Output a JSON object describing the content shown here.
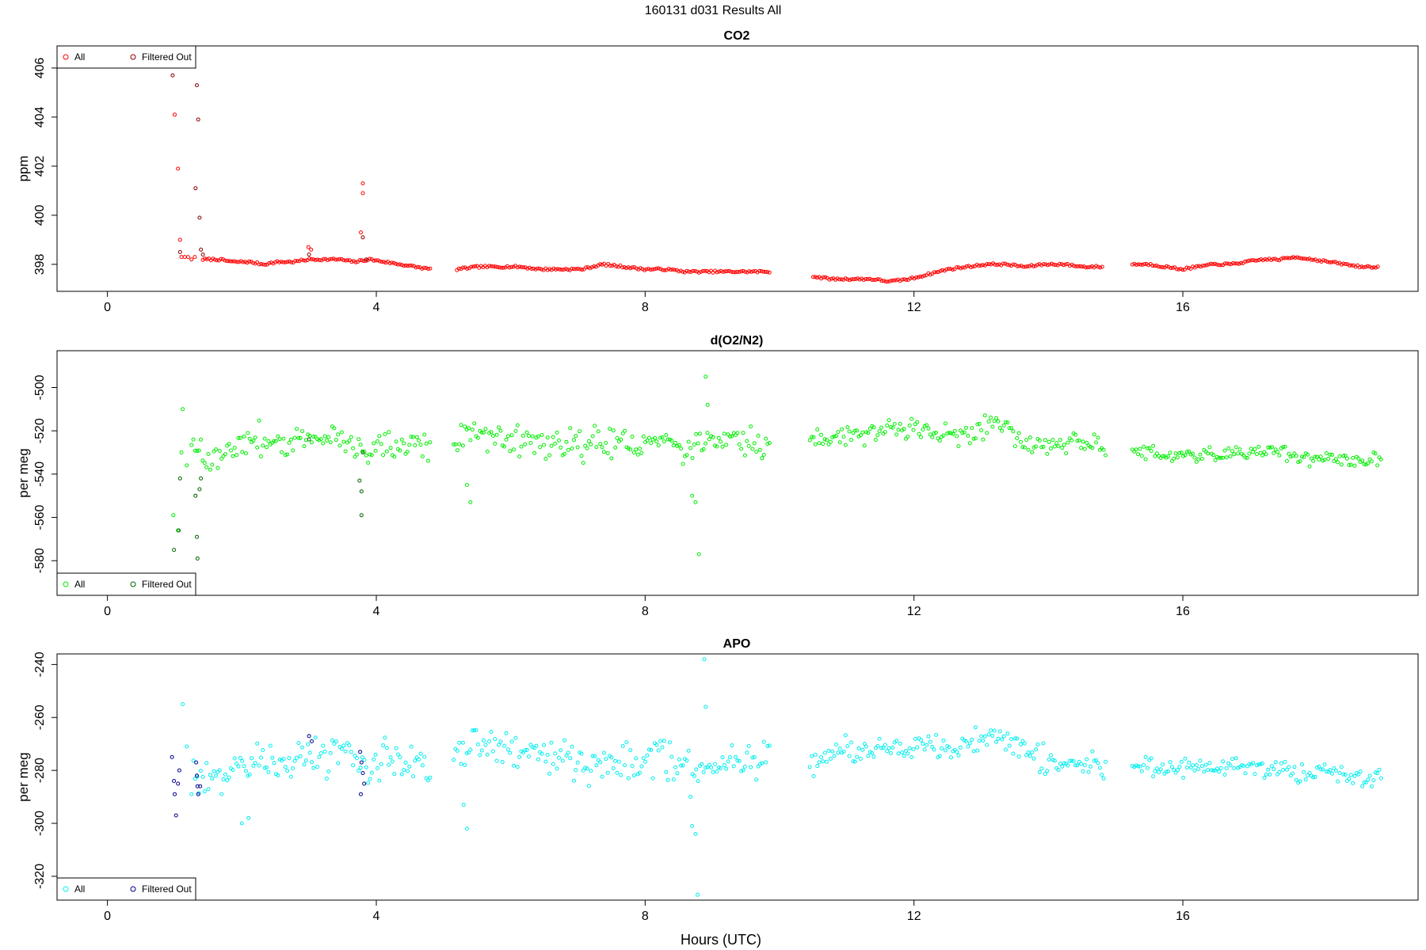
{
  "figure": {
    "title": "160131   d031   Results All",
    "xlabel": "Hours (UTC)",
    "xticks": [
      0,
      4,
      8,
      12,
      16
    ],
    "xlim": [
      -0.75,
      19.5
    ]
  },
  "chart_data": [
    {
      "type": "scatter",
      "title": "CO2",
      "ylabel": "ppm",
      "ylim": [
        396.9,
        406.9
      ],
      "yticks": [
        398,
        400,
        402,
        404,
        406
      ],
      "legend_position": "top-left",
      "series": [
        {
          "name": "All",
          "color": "#ff0000",
          "segments": [
            {
              "x_start": 1.42,
              "x_end": 4.8,
              "step": 0.03,
              "y": [
                398.2,
                398.2,
                398.1,
                398.1,
                398.0,
                398.1,
                398.1,
                398.2,
                398.2,
                398.2,
                398.1,
                398.2,
                398.1,
                398.0,
                397.9,
                397.8
              ]
            },
            {
              "x_start": 5.2,
              "x_end": 9.85,
              "step": 0.03,
              "y": [
                397.8,
                397.9,
                397.9,
                397.9,
                397.8,
                397.8,
                397.8,
                398.0,
                397.9,
                397.8,
                397.8,
                397.7,
                397.7,
                397.7,
                397.7,
                397.7
              ]
            },
            {
              "x_start": 10.5,
              "x_end": 14.8,
              "step": 0.03,
              "y": [
                397.5,
                397.4,
                397.4,
                397.4,
                397.3,
                397.4,
                397.6,
                397.8,
                397.9,
                398.0,
                398.0,
                397.9,
                398.0,
                398.0,
                397.9,
                397.9
              ]
            },
            {
              "x_start": 15.25,
              "x_end": 18.9,
              "step": 0.03,
              "y": [
                398.0,
                398.0,
                397.9,
                397.8,
                397.9,
                398.0,
                398.0,
                398.1,
                398.2,
                398.2,
                398.3,
                398.2,
                398.1,
                398.0,
                397.9,
                397.9
              ]
            }
          ],
          "points": [
            [
              1.0,
              404.1
            ],
            [
              1.05,
              401.9
            ],
            [
              1.08,
              399.0
            ],
            [
              1.1,
              398.3
            ],
            [
              1.15,
              398.3
            ],
            [
              1.2,
              398.3
            ],
            [
              1.25,
              398.2
            ],
            [
              1.3,
              398.3
            ],
            [
              2.99,
              398.7
            ],
            [
              3.03,
              398.6
            ],
            [
              3.8,
              401.3
            ],
            [
              3.8,
              400.9
            ],
            [
              3.77,
              399.3
            ]
          ]
        },
        {
          "name": "Filtered Out",
          "color": "#8b0000",
          "points": [
            [
              0.97,
              405.7
            ],
            [
              1.02,
              406.3
            ],
            [
              1.08,
              398.5
            ],
            [
              1.33,
              405.3
            ],
            [
              1.35,
              403.9
            ],
            [
              1.31,
              401.1
            ],
            [
              1.37,
              399.9
            ],
            [
              1.39,
              398.6
            ],
            [
              1.42,
              398.4
            ],
            [
              3.8,
              399.1
            ],
            [
              3.85,
              398.2
            ],
            [
              3.0,
              398.4
            ]
          ]
        }
      ]
    },
    {
      "type": "scatter",
      "title": "d(O2/N2)",
      "ylabel": "per meg",
      "ylim": [
        -596,
        -483
      ],
      "yticks": [
        -500,
        -520,
        -540,
        -560,
        -580
      ],
      "legend_position": "bottom-left",
      "series": [
        {
          "name": "All",
          "color": "#00ee00",
          "segments": [
            {
              "x_start": 1.25,
              "x_end": 4.8,
              "step": 0.028,
              "y": [
                -527,
                -533,
                -530,
                -526,
                -525,
                -524,
                -527,
                -524,
                -524,
                -522,
                -526,
                -528,
                -525,
                -527,
                -525,
                -527
              ],
              "scatter": 7
            },
            {
              "x_start": 5.15,
              "x_end": 9.85,
              "step": 0.028,
              "y": [
                -525,
                -520,
                -523,
                -524,
                -524,
                -525,
                -527,
                -526,
                -524,
                -527,
                -523,
                -530,
                -526,
                -522,
                -525,
                -526
              ],
              "scatter": 7
            },
            {
              "x_start": 10.45,
              "x_end": 14.85,
              "step": 0.028,
              "y": [
                -525,
                -523,
                -524,
                -520,
                -520,
                -520,
                -520,
                -522,
                -521,
                -518,
                -519,
                -525,
                -528,
                -528,
                -526,
                -528
              ],
              "scatter": 5
            },
            {
              "x_start": 15.25,
              "x_end": 18.95,
              "step": 0.028,
              "y": [
                -530,
                -530,
                -532,
                -531,
                -531,
                -531,
                -530,
                -531,
                -530,
                -529,
                -532,
                -533,
                -532,
                -534,
                -534,
                -532
              ],
              "scatter": 3
            }
          ],
          "points": [
            [
              0.98,
              -559
            ],
            [
              1.05,
              -566
            ],
            [
              1.12,
              -510
            ],
            [
              1.1,
              -530
            ],
            [
              1.18,
              -536
            ],
            [
              5.35,
              -545
            ],
            [
              5.4,
              -553
            ],
            [
              8.7,
              -550
            ],
            [
              8.75,
              -553
            ],
            [
              8.8,
              -577
            ],
            [
              8.9,
              -495
            ],
            [
              8.93,
              -508
            ]
          ]
        },
        {
          "name": "Filtered Out",
          "color": "#006400",
          "points": [
            [
              0.99,
              -575
            ],
            [
              1.06,
              -566
            ],
            [
              1.08,
              -542
            ],
            [
              1.33,
              -569
            ],
            [
              1.34,
              -579
            ],
            [
              1.37,
              -547
            ],
            [
              1.39,
              -542
            ],
            [
              1.31,
              -550
            ],
            [
              3.75,
              -543
            ],
            [
              3.78,
              -548
            ],
            [
              3.78,
              -559
            ],
            [
              3.8,
              -530
            ],
            [
              3.0,
              -524
            ]
          ]
        }
      ]
    },
    {
      "type": "scatter",
      "title": "APO",
      "ylabel": "per meg",
      "ylim": [
        -329,
        -236
      ],
      "yticks": [
        -240,
        -260,
        -280,
        -300,
        -320
      ],
      "legend_position": "bottom-left",
      "series": [
        {
          "name": "All",
          "color": "#00eeee",
          "segments": [
            {
              "x_start": 1.25,
              "x_end": 4.8,
              "step": 0.028,
              "y": [
                -281,
                -284,
                -281,
                -278,
                -277,
                -276,
                -278,
                -276,
                -275,
                -274,
                -276,
                -278,
                -275,
                -277,
                -276,
                -277
              ],
              "scatter": 7
            },
            {
              "x_start": 5.15,
              "x_end": 9.85,
              "step": 0.028,
              "y": [
                -275,
                -267,
                -272,
                -274,
                -274,
                -275,
                -277,
                -276,
                -275,
                -278,
                -274,
                -281,
                -278,
                -275,
                -276,
                -276
              ],
              "scatter": 7
            },
            {
              "x_start": 10.45,
              "x_end": 14.85,
              "step": 0.028,
              "y": [
                -276,
                -274,
                -274,
                -272,
                -271,
                -271,
                -271,
                -272,
                -270,
                -268,
                -268,
                -273,
                -276,
                -277,
                -277,
                -279
              ],
              "scatter": 5
            },
            {
              "x_start": 15.25,
              "x_end": 18.95,
              "step": 0.028,
              "y": [
                -279,
                -279,
                -280,
                -279,
                -279,
                -279,
                -278,
                -279,
                -279,
                -279,
                -281,
                -281,
                -280,
                -282,
                -283,
                -281
              ],
              "scatter": 3.5
            }
          ],
          "points": [
            [
              1.12,
              -255
            ],
            [
              1.18,
              -271
            ],
            [
              5.3,
              -293
            ],
            [
              5.35,
              -302
            ],
            [
              8.7,
              -301
            ],
            [
              8.75,
              -304
            ],
            [
              8.78,
              -327
            ],
            [
              8.88,
              -238
            ],
            [
              8.9,
              -256
            ],
            [
              2.0,
              -300
            ],
            [
              2.1,
              -298
            ]
          ]
        },
        {
          "name": "Filtered Out",
          "color": "#00008b",
          "points": [
            [
              0.96,
              -275
            ],
            [
              0.99,
              -284
            ],
            [
              1.0,
              -289
            ],
            [
              1.02,
              -297
            ],
            [
              1.05,
              -285
            ],
            [
              1.07,
              -280
            ],
            [
              1.32,
              -277
            ],
            [
              1.33,
              -282
            ],
            [
              1.34,
              -286
            ],
            [
              1.35,
              -289
            ],
            [
              1.38,
              -286
            ],
            [
              3.76,
              -273
            ],
            [
              3.78,
              -277
            ],
            [
              3.8,
              -281
            ],
            [
              3.82,
              -285
            ],
            [
              3.77,
              -289
            ],
            [
              3.0,
              -267
            ],
            [
              3.04,
              -269
            ]
          ]
        }
      ]
    }
  ]
}
